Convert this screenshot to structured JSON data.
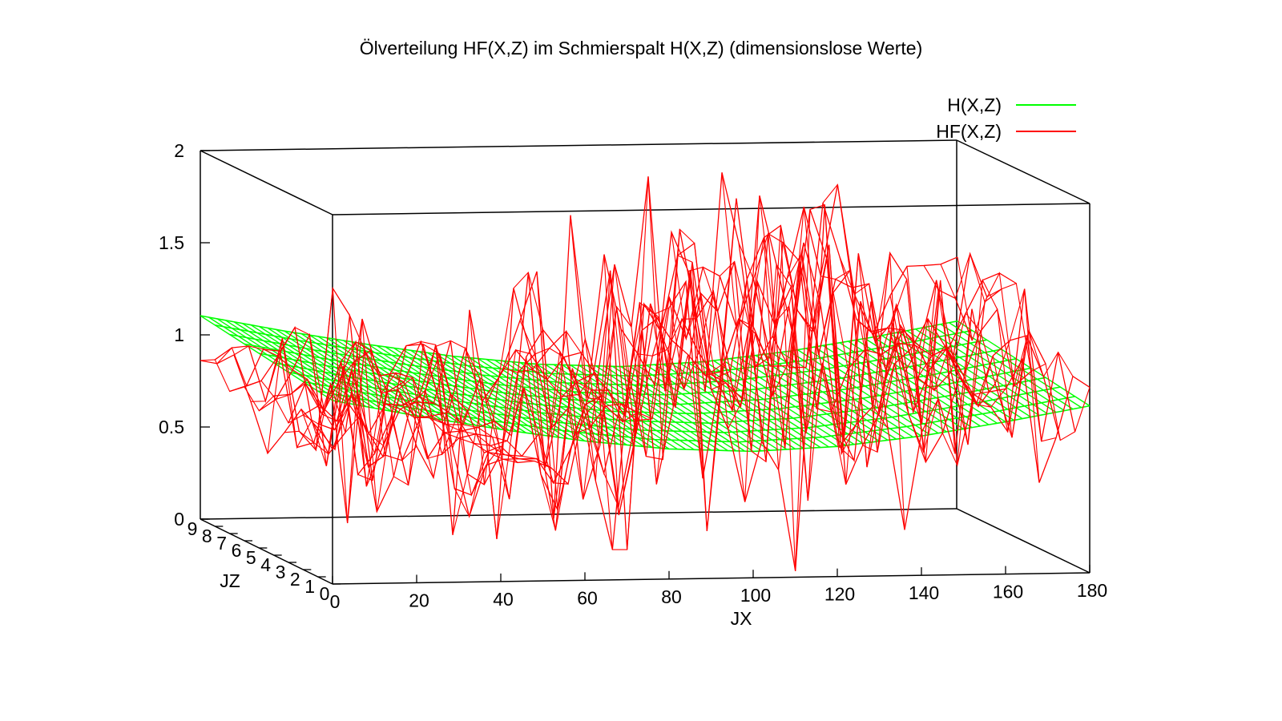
{
  "chart_data": {
    "type": "surface3d",
    "title": "Ölverteilung HF(X,Z) im Schmierspalt H(X,Z) (dimensionslose Werte)",
    "xlabel": "JX",
    "zlabel": "JZ",
    "ylabel": "",
    "x_range": [
      0,
      180
    ],
    "z_range": [
      0,
      9
    ],
    "y_range": [
      0,
      2
    ],
    "x_ticks": [
      "0",
      "20",
      "40",
      "60",
      "80",
      "100",
      "120",
      "140",
      "160",
      "180"
    ],
    "z_ticks": [
      "0",
      "1",
      "2",
      "3",
      "4",
      "5",
      "6",
      "7",
      "8",
      "9"
    ],
    "y_ticks": [
      "0",
      "0.5",
      "1",
      "1.5",
      "2"
    ],
    "legend_position": "top-right",
    "series": [
      {
        "name": "H(X,Z)",
        "color": "#00ff00",
        "profile_x": [
          0,
          20,
          40,
          60,
          80,
          100,
          120,
          140,
          160,
          180
        ],
        "profile_h": [
          1.05,
          0.96,
          0.88,
          0.81,
          0.76,
          0.74,
          0.76,
          0.81,
          0.88,
          0.96
        ]
      },
      {
        "name": "HF(X,Z)",
        "color": "#ff0000",
        "note_range": "",
        "ridge_x": [
          0,
          10,
          20,
          40,
          60,
          80,
          100,
          120,
          140,
          160,
          180
        ],
        "ridge_values": [
          0.85,
          0.9,
          0.72,
          0.64,
          0.62,
          0.95,
          1.1,
          1.0,
          1.05,
          0.95,
          1.0
        ],
        "peaks_x": [
          16,
          28,
          34,
          62,
          84,
          96,
          112,
          124,
          136,
          148,
          170,
          176
        ],
        "peaks_max": [
          1.3,
          1.35,
          1.3,
          1.65,
          2.0,
          1.85,
          1.75,
          1.95,
          1.8,
          1.75,
          1.65,
          1.5
        ],
        "peaks_min": [
          0.4,
          0.25,
          0.35,
          0.1,
          -0.05,
          -0.1,
          0.1,
          -0.15,
          -0.1,
          0.15,
          0.3,
          0.35
        ]
      }
    ]
  }
}
